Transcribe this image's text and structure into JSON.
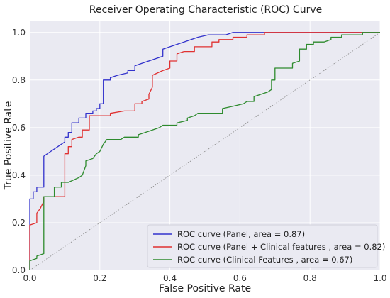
{
  "chart_data": {
    "type": "line",
    "title": "Receiver Operating Characteristic (ROC) Curve",
    "xlabel": "False Positive Rate",
    "ylabel": "True Positive Rate",
    "xlim": [
      0,
      1
    ],
    "ylim": [
      0,
      1.05
    ],
    "x_ticks": [
      "0.0",
      "0.2",
      "0.4",
      "0.6",
      "0.8",
      "1.0"
    ],
    "y_ticks": [
      "0.0",
      "0.2",
      "0.4",
      "0.6",
      "0.8",
      "1.0"
    ],
    "x_tick_values": [
      0,
      0.2,
      0.4,
      0.6,
      0.8,
      1.0
    ],
    "y_tick_values": [
      0,
      0.2,
      0.4,
      0.6,
      0.8,
      1.0
    ],
    "grid": true,
    "legend_position": "bottom-right",
    "diagonal": {
      "style": "dotted",
      "color": "#888888"
    },
    "series": [
      {
        "name": "ROC curve (Panel, area = 0.87)",
        "color": "#3232cc",
        "points": [
          [
            0,
            0
          ],
          [
            0,
            0.3
          ],
          [
            0.01,
            0.3
          ],
          [
            0.01,
            0.33
          ],
          [
            0.02,
            0.33
          ],
          [
            0.02,
            0.35
          ],
          [
            0.04,
            0.35
          ],
          [
            0.04,
            0.48
          ],
          [
            0.06,
            0.5
          ],
          [
            0.08,
            0.52
          ],
          [
            0.1,
            0.54
          ],
          [
            0.1,
            0.56
          ],
          [
            0.11,
            0.56
          ],
          [
            0.11,
            0.58
          ],
          [
            0.12,
            0.58
          ],
          [
            0.12,
            0.62
          ],
          [
            0.14,
            0.62
          ],
          [
            0.14,
            0.64
          ],
          [
            0.16,
            0.64
          ],
          [
            0.16,
            0.66
          ],
          [
            0.18,
            0.66
          ],
          [
            0.18,
            0.67
          ],
          [
            0.19,
            0.67
          ],
          [
            0.19,
            0.68
          ],
          [
            0.2,
            0.68
          ],
          [
            0.2,
            0.7
          ],
          [
            0.21,
            0.7
          ],
          [
            0.21,
            0.8
          ],
          [
            0.23,
            0.8
          ],
          [
            0.23,
            0.81
          ],
          [
            0.25,
            0.82
          ],
          [
            0.28,
            0.83
          ],
          [
            0.28,
            0.84
          ],
          [
            0.3,
            0.84
          ],
          [
            0.3,
            0.86
          ],
          [
            0.32,
            0.87
          ],
          [
            0.36,
            0.89
          ],
          [
            0.38,
            0.9
          ],
          [
            0.38,
            0.93
          ],
          [
            0.4,
            0.94
          ],
          [
            0.44,
            0.96
          ],
          [
            0.48,
            0.98
          ],
          [
            0.51,
            0.99
          ],
          [
            0.56,
            0.99
          ],
          [
            0.58,
            1.0
          ],
          [
            1.0,
            1.0
          ]
        ]
      },
      {
        "name": "ROC curve (Panel + Clinical features , area = 0.82)",
        "color": "#e03131",
        "points": [
          [
            0,
            0
          ],
          [
            0,
            0.19
          ],
          [
            0.02,
            0.2
          ],
          [
            0.02,
            0.24
          ],
          [
            0.03,
            0.26
          ],
          [
            0.04,
            0.29
          ],
          [
            0.04,
            0.31
          ],
          [
            0.1,
            0.31
          ],
          [
            0.1,
            0.49
          ],
          [
            0.11,
            0.49
          ],
          [
            0.11,
            0.52
          ],
          [
            0.12,
            0.52
          ],
          [
            0.12,
            0.55
          ],
          [
            0.14,
            0.56
          ],
          [
            0.15,
            0.56
          ],
          [
            0.15,
            0.59
          ],
          [
            0.17,
            0.59
          ],
          [
            0.17,
            0.65
          ],
          [
            0.23,
            0.65
          ],
          [
            0.23,
            0.66
          ],
          [
            0.27,
            0.67
          ],
          [
            0.3,
            0.67
          ],
          [
            0.3,
            0.7
          ],
          [
            0.32,
            0.7
          ],
          [
            0.32,
            0.71
          ],
          [
            0.34,
            0.72
          ],
          [
            0.34,
            0.74
          ],
          [
            0.35,
            0.77
          ],
          [
            0.35,
            0.82
          ],
          [
            0.38,
            0.84
          ],
          [
            0.4,
            0.85
          ],
          [
            0.4,
            0.88
          ],
          [
            0.42,
            0.88
          ],
          [
            0.42,
            0.91
          ],
          [
            0.44,
            0.92
          ],
          [
            0.47,
            0.92
          ],
          [
            0.47,
            0.94
          ],
          [
            0.52,
            0.94
          ],
          [
            0.52,
            0.96
          ],
          [
            0.54,
            0.96
          ],
          [
            0.54,
            0.97
          ],
          [
            0.58,
            0.97
          ],
          [
            0.58,
            0.98
          ],
          [
            0.62,
            0.98
          ],
          [
            0.62,
            0.99
          ],
          [
            0.67,
            0.99
          ],
          [
            0.67,
            1.0
          ],
          [
            1.0,
            1.0
          ]
        ]
      },
      {
        "name": "ROC curve (Clinical Features , area = 0.67)",
        "color": "#2e8b2e",
        "points": [
          [
            0,
            0
          ],
          [
            0,
            0.04
          ],
          [
            0.02,
            0.05
          ],
          [
            0.02,
            0.06
          ],
          [
            0.04,
            0.07
          ],
          [
            0.04,
            0.31
          ],
          [
            0.07,
            0.31
          ],
          [
            0.07,
            0.35
          ],
          [
            0.09,
            0.35
          ],
          [
            0.09,
            0.37
          ],
          [
            0.11,
            0.37
          ],
          [
            0.14,
            0.39
          ],
          [
            0.15,
            0.4
          ],
          [
            0.16,
            0.44
          ],
          [
            0.16,
            0.46
          ],
          [
            0.18,
            0.47
          ],
          [
            0.19,
            0.49
          ],
          [
            0.2,
            0.5
          ],
          [
            0.21,
            0.53
          ],
          [
            0.22,
            0.55
          ],
          [
            0.26,
            0.55
          ],
          [
            0.27,
            0.56
          ],
          [
            0.31,
            0.56
          ],
          [
            0.31,
            0.57
          ],
          [
            0.33,
            0.58
          ],
          [
            0.35,
            0.59
          ],
          [
            0.37,
            0.6
          ],
          [
            0.38,
            0.61
          ],
          [
            0.42,
            0.61
          ],
          [
            0.42,
            0.62
          ],
          [
            0.45,
            0.63
          ],
          [
            0.45,
            0.64
          ],
          [
            0.47,
            0.65
          ],
          [
            0.48,
            0.66
          ],
          [
            0.55,
            0.66
          ],
          [
            0.55,
            0.68
          ],
          [
            0.58,
            0.69
          ],
          [
            0.61,
            0.7
          ],
          [
            0.62,
            0.71
          ],
          [
            0.64,
            0.71
          ],
          [
            0.64,
            0.73
          ],
          [
            0.66,
            0.74
          ],
          [
            0.68,
            0.75
          ],
          [
            0.69,
            0.76
          ],
          [
            0.69,
            0.8
          ],
          [
            0.7,
            0.8
          ],
          [
            0.7,
            0.85
          ],
          [
            0.75,
            0.85
          ],
          [
            0.75,
            0.87
          ],
          [
            0.77,
            0.88
          ],
          [
            0.77,
            0.93
          ],
          [
            0.79,
            0.93
          ],
          [
            0.79,
            0.95
          ],
          [
            0.81,
            0.95
          ],
          [
            0.81,
            0.96
          ],
          [
            0.84,
            0.96
          ],
          [
            0.86,
            0.97
          ],
          [
            0.86,
            0.98
          ],
          [
            0.89,
            0.98
          ],
          [
            0.89,
            0.99
          ],
          [
            0.95,
            0.99
          ],
          [
            0.95,
            1.0
          ],
          [
            1.0,
            1.0
          ]
        ]
      }
    ]
  }
}
